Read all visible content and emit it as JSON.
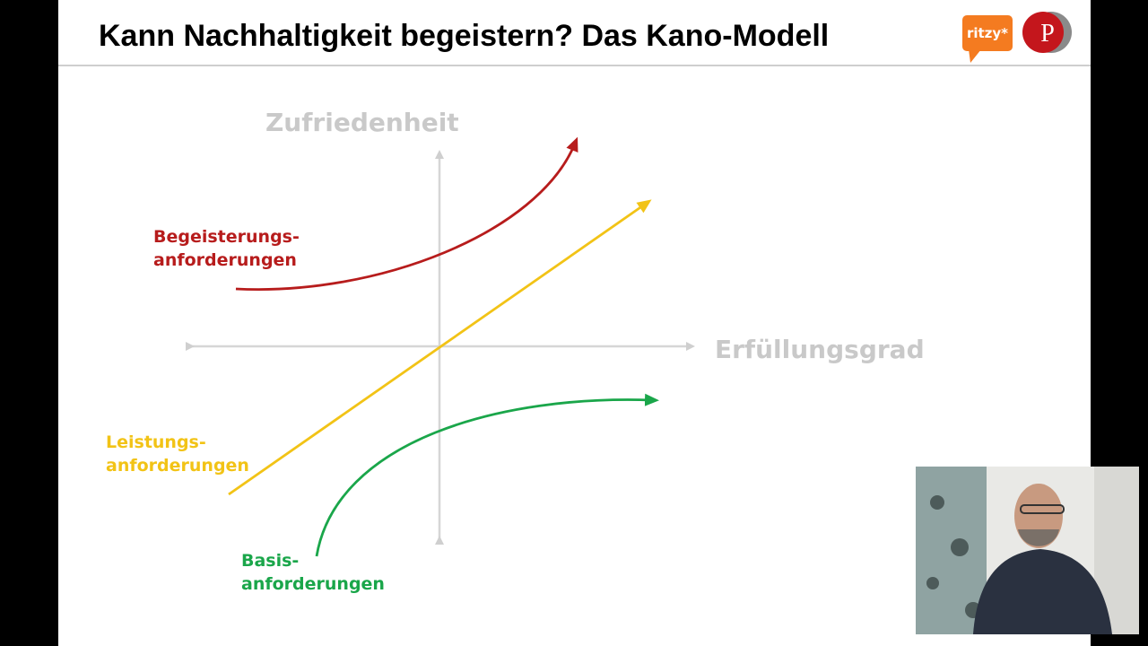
{
  "header": {
    "title": "Kann Nachhaltigkeit begeistern? Das Kano-Modell",
    "logo_text": "ritzy*",
    "logo_letter": "P"
  },
  "diagram": {
    "y_axis_label": "Zufriedenheit",
    "x_axis_label": "Erfüllungsgrad",
    "curves": [
      {
        "label_lines": [
          "Begeisterungs-",
          "anforderungen"
        ]
      },
      {
        "label_lines": [
          "Leistungs-",
          "anforderungen"
        ]
      },
      {
        "label_lines": [
          "Basis-",
          "anforderungen"
        ]
      }
    ]
  }
}
